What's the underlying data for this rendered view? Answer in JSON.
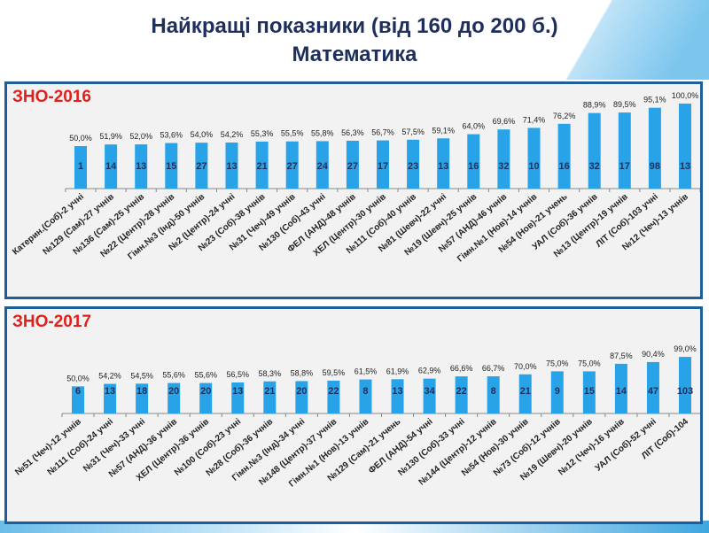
{
  "title_line1": "Найкращі показники (від 160 до 200 б.)",
  "title_line2": "Математика",
  "bar_color": "#29a3e8",
  "chart_data": [
    {
      "type": "bar",
      "title": "ЗНО-2016",
      "ylim": [
        0,
        105
      ],
      "categories": [
        "Катерин.(Соб)-2 учні",
        "№129 (Сам)-27 учнів",
        "№136 (Сам)-25 учнів",
        "№22 (Центр)-28 учнів",
        "Гімн.№3 (Інд)-50 учнів",
        "№2 (Центр)-24 учні",
        "№23 (Соб)-38 учнів",
        "№31 (Чеч)-49 учнів",
        "№130 (Соб)-43 учні",
        "ФЕЛ (АНД)-48 учнів",
        "ХЕЛ (Центр)-30 учнів",
        "№111 (Соб)-40 учнів",
        "№81 (Шевч)-22 учні",
        "№19 (Шевч)-25 учнів",
        "№57 (АНД)-46 учнів",
        "Гімн.№1 (Нов)-14 учнів",
        "№54 (Нов)-21 учень",
        "УАЛ (Соб)-36 учнів",
        "№13 (Центр)-19 учнів",
        "ЛІТ (Соб)-103 учні",
        "№12 (Чеч)-13 учнів"
      ],
      "values": [
        50.0,
        51.9,
        52.0,
        53.6,
        54.0,
        54.2,
        55.3,
        55.5,
        55.8,
        56.3,
        56.7,
        57.5,
        59.1,
        64.0,
        69.6,
        71.4,
        76.2,
        88.9,
        89.5,
        95.1,
        100.0
      ],
      "value_labels": [
        "50,0%",
        "51,9%",
        "52,0%",
        "53,6%",
        "54,0%",
        "54,2%",
        "55,3%",
        "55,5%",
        "55,8%",
        "56,3%",
        "56,7%",
        "57,5%",
        "59,1%",
        "64,0%",
        "69,6%",
        "71,4%",
        "76,2%",
        "88,9%",
        "89,5%",
        "95,1%",
        "100,0%"
      ],
      "counts": [
        "1",
        "14",
        "13",
        "15",
        "27",
        "13",
        "21",
        "27",
        "24",
        "27",
        "17",
        "23",
        "13",
        "16",
        "32",
        "10",
        "16",
        "32",
        "17",
        "98",
        "13"
      ]
    },
    {
      "type": "bar",
      "title": "ЗНО-2017",
      "ylim": [
        5,
        100
      ],
      "categories": [
        "№51 (Чеч)-12 учнів",
        "№111 (Соб)-24 учні",
        "№31 (Чеч)-33 учні",
        "№57 (АНД)-36 учнів",
        "ХЕЛ (Центр)-36 учнів",
        "№100 (Соб)-23 учні",
        "№28 (Соб)-36 учнів",
        "Гімн.№3 (Інд)-34 учні",
        "№148 (Центр)-37 учнів",
        "Гімн.№1 (Нов)-13 учнів",
        "№129 (Сам)-21 учень",
        "ФЕЛ (АНД)-54 учні",
        "№130 (Соб)-33 учні",
        "№144 (Центр)-12 учнів",
        "№54 (Нов)-30 учнів",
        "№73 (Соб)-12 учнів",
        "№19 (Шевч)-20 учнів",
        "№12 (Чеч)-16 учнів",
        "УАЛ (Соб)-52 учні",
        "ЛІТ (Соб)-104"
      ],
      "values": [
        50.0,
        54.2,
        54.5,
        55.6,
        55.6,
        56.5,
        58.3,
        58.8,
        59.5,
        61.5,
        61.9,
        62.9,
        66.6,
        66.7,
        70.0,
        75.0,
        75.0,
        87.5,
        90.4,
        99.0
      ],
      "value_labels": [
        "50,0%",
        "54,2%",
        "54,5%",
        "55,6%",
        "55,6%",
        "56,5%",
        "58,3%",
        "58,8%",
        "59,5%",
        "61,5%",
        "61,9%",
        "62,9%",
        "66,6%",
        "66,7%",
        "70,0%",
        "75,0%",
        "75,0%",
        "87,5%",
        "90,4%",
        "99,0%"
      ],
      "counts": [
        "6",
        "13",
        "18",
        "20",
        "20",
        "13",
        "21",
        "20",
        "22",
        "8",
        "13",
        "34",
        "22",
        "8",
        "21",
        "9",
        "15",
        "14",
        "47",
        "103"
      ]
    }
  ]
}
